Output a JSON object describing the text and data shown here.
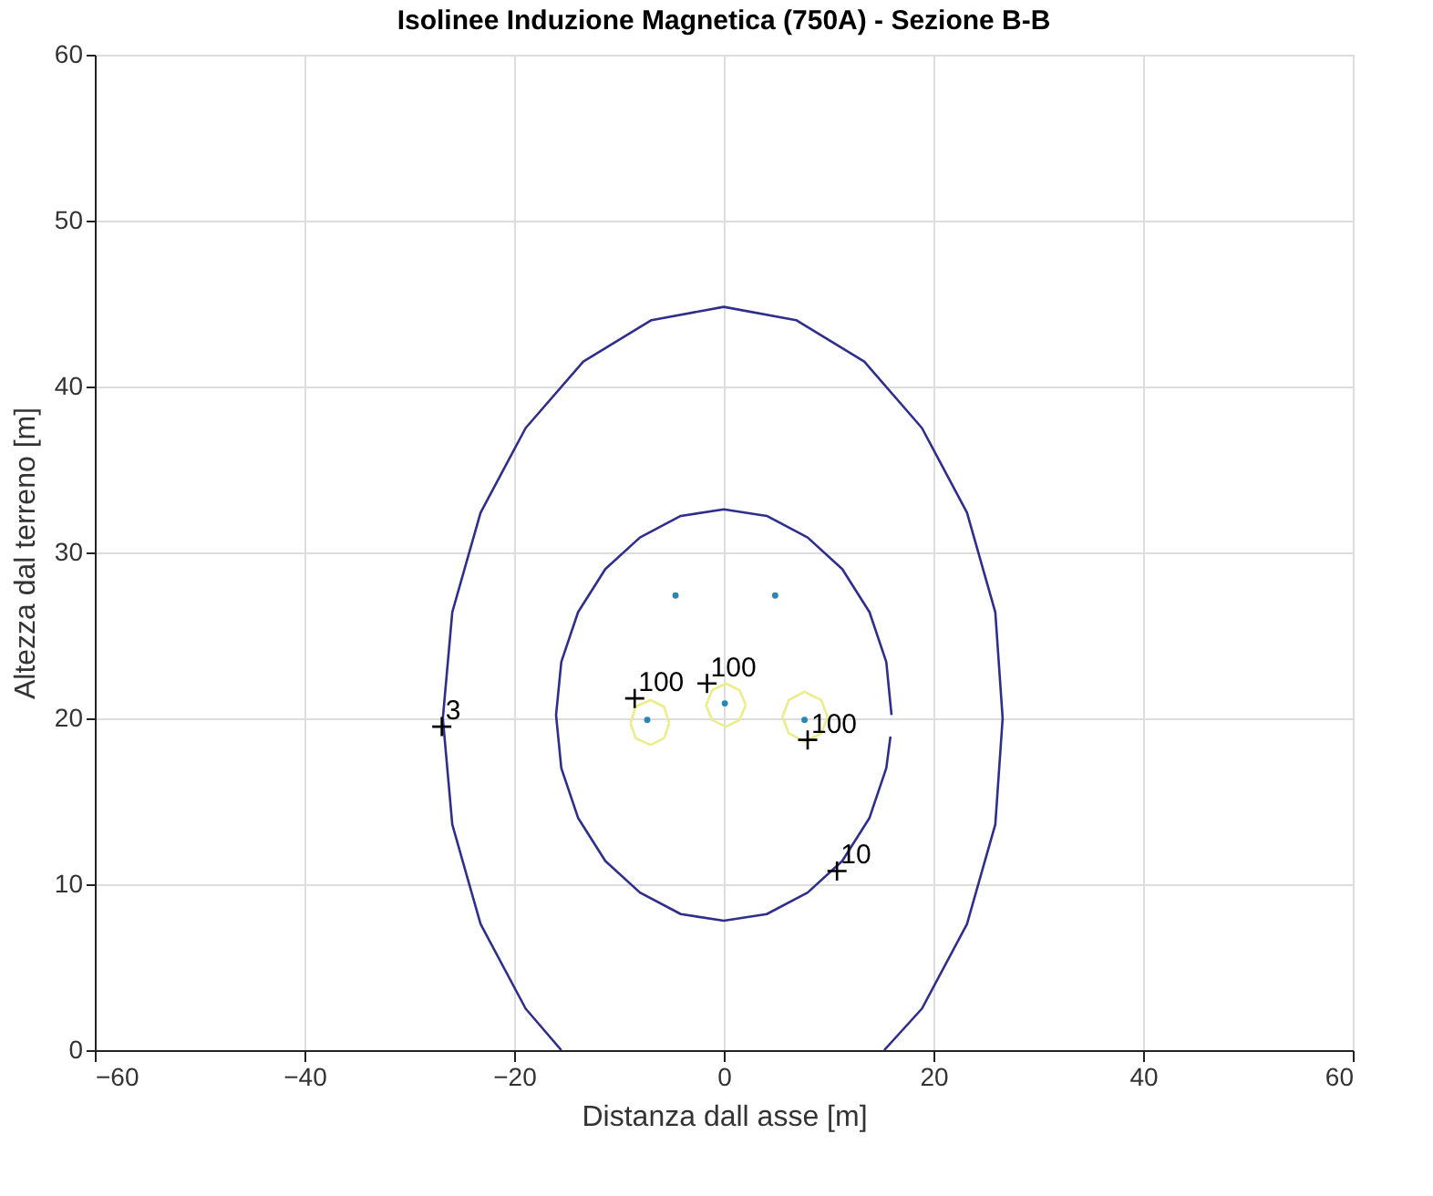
{
  "chart_data": {
    "type": "line",
    "title": "Isolinee Induzione Magnetica (750A) - Sezione B-B",
    "xlabel": "Distanza dall asse [m]",
    "ylabel": "Altezza dal terreno [m]",
    "xlim": [
      -60,
      60
    ],
    "ylim": [
      0,
      60
    ],
    "xticks": [
      -60,
      -40,
      -20,
      0,
      20,
      40,
      60
    ],
    "yticks": [
      0,
      10,
      20,
      30,
      40,
      50,
      60
    ],
    "grid": true,
    "series": [
      {
        "color": "#2e2e8c",
        "line_style": "solid",
        "x": [
          -15.5,
          -18.9,
          -23.2,
          -25.9,
          -26.8,
          -25.9,
          -23.2,
          -18.9,
          -13.4,
          -6.9,
          0,
          6.9,
          13.4,
          18.9,
          23.2,
          25.9,
          26.6,
          25.9,
          23.2,
          18.9,
          15.3
        ],
        "values": [
          0,
          2.5,
          7.6,
          13.6,
          20,
          26.4,
          32.4,
          37.5,
          41.5,
          44.0,
          44.8,
          44.0,
          41.5,
          37.5,
          32.4,
          26.4,
          20,
          13.6,
          7.6,
          2.5,
          0
        ]
      },
      {
        "type": "line",
        "color": "#2e2e8c",
        "line_style": "solid",
        "x": [
          16,
          15.5,
          13.9,
          11.3,
          8,
          4.1,
          0,
          -4.1,
          -8,
          -11.3,
          -13.9,
          -15.5,
          -16,
          -15.5,
          -13.9,
          -11.3,
          -8,
          -4.1,
          0,
          4.1,
          8,
          11.3,
          13.9,
          15.5,
          15.9
        ],
        "values": [
          20.2,
          23.4,
          26.4,
          29.0,
          30.9,
          32.2,
          32.6,
          32.2,
          30.9,
          29.0,
          26.4,
          23.4,
          20.2,
          17.0,
          14.0,
          11.4,
          9.5,
          8.2,
          7.8,
          8.2,
          9.5,
          11.4,
          14.0,
          17.0,
          18.9
        ]
      },
      {
        "color": "#ecec8a",
        "line_style": "solid",
        "x": [
          -8.9,
          -8.4,
          -7.0,
          -5.7,
          -5.2
        ],
        "values": [
          19.7,
          20.7,
          21.1,
          20.7,
          19.7
        ]
      },
      {
        "color": "#ecec8a",
        "line_style": "solid",
        "x": [
          -8.9,
          -8.4,
          -7.0,
          -5.7,
          -5.2
        ],
        "values": [
          19.7,
          18.8,
          18.4,
          18.8,
          19.7
        ]
      },
      {
        "color": "#ecec8a",
        "line_style": "solid",
        "x": [
          -1.7,
          -1.1,
          0.2,
          1.5,
          2.1
        ],
        "values": [
          20.8,
          21.7,
          22.1,
          21.7,
          20.8
        ]
      },
      {
        "color": "#ecec8a",
        "line_style": "solid",
        "x": [
          -1.7,
          -1.1,
          0.2,
          1.5,
          2.1
        ],
        "values": [
          20.8,
          19.9,
          19.5,
          19.9,
          20.8
        ]
      },
      {
        "color": "#ecec8a",
        "line_style": "solid",
        "x": [
          5.6,
          6.2,
          7.7,
          9.3,
          9.9
        ],
        "values": [
          20.1,
          21.1,
          21.6,
          21.1,
          20.1
        ]
      },
      {
        "color": "#ecec8a",
        "line_style": "solid",
        "x": [
          5.6,
          6.2,
          7.7,
          9.3,
          9.9
        ],
        "values": [
          20.1,
          19.1,
          18.6,
          19.1,
          20.1
        ]
      },
      {
        "type": "scatter",
        "color": "#2b86b8",
        "marker": "circle",
        "x": [
          -4.6,
          4.9,
          -7.3,
          0.1,
          7.7
        ],
        "values": [
          27.4,
          27.4,
          19.9,
          20.9,
          19.9
        ]
      },
      {
        "type": "scatter",
        "color": "#000000",
        "marker": "cross",
        "x": [
          -26.9,
          -8.5,
          -1.6,
          8.0,
          10.8
        ],
        "values": [
          19.5,
          21.2,
          22.1,
          18.7,
          10.8
        ]
      }
    ],
    "annotations": [
      {
        "text": "3",
        "x": -26.9,
        "y": 19.5
      },
      {
        "text": "100",
        "x": -8.5,
        "y": 21.2
      },
      {
        "text": "100",
        "x": -1.6,
        "y": 22.1
      },
      {
        "text": "100",
        "x": 8.0,
        "y": 18.7
      },
      {
        "text": "10",
        "x": 10.8,
        "y": 10.8
      }
    ]
  }
}
